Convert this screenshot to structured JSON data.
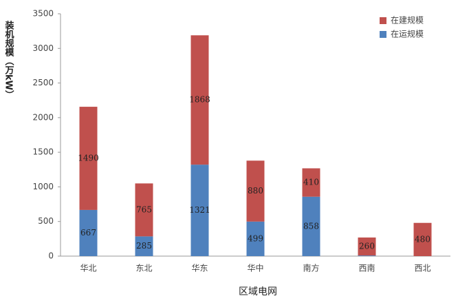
{
  "chart_data": {
    "type": "stacked_bar",
    "x_label": "区域电网",
    "y_label": "装机规模（万kW）",
    "categories": [
      "华北",
      "东北",
      "华东",
      "华中",
      "南方",
      "西南",
      "西北"
    ],
    "series": [
      {
        "name": "在运规模",
        "color": "#4f81bd",
        "values": [
          667,
          285,
          1321,
          499,
          858,
          9,
          0
        ]
      },
      {
        "name": "在建规模",
        "color": "#c0504d",
        "values": [
          1490,
          765,
          1868,
          880,
          410,
          260,
          480
        ]
      }
    ],
    "ylim": [
      0,
      3500
    ],
    "yticks": [
      0,
      500,
      1000,
      1500,
      2000,
      2500,
      3000,
      3500
    ],
    "legend": "top-right"
  }
}
